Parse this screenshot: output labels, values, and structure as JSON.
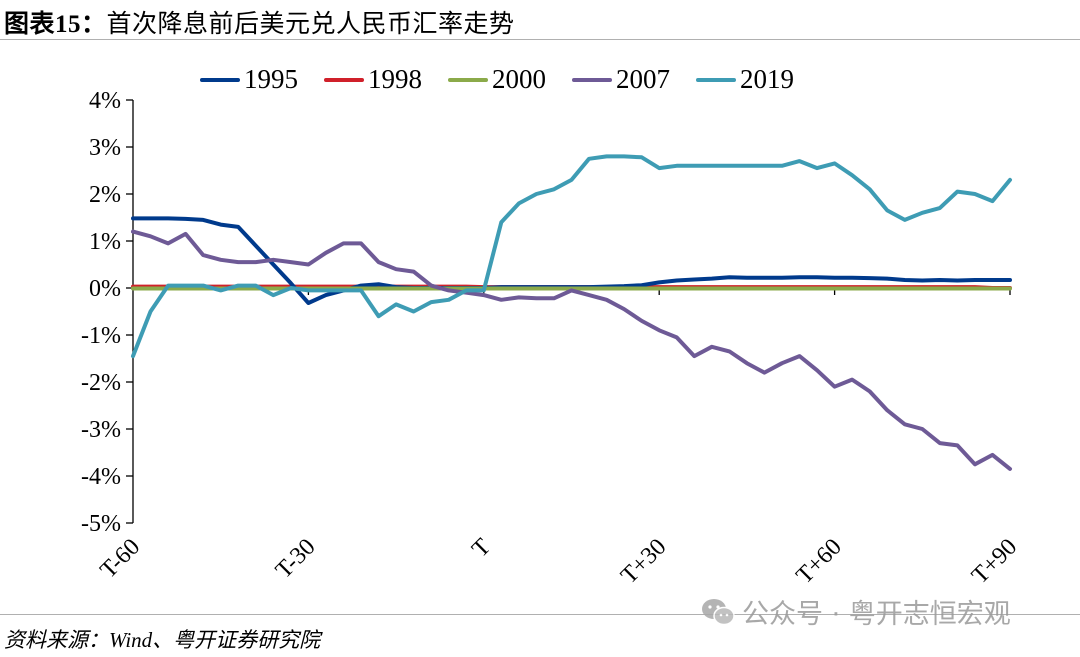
{
  "header": {
    "title_prefix": "图表15：",
    "title": "首次降息前后美元兑人民币汇率走势"
  },
  "footer": {
    "source": "资料来源：Wind、粤开证券研究院",
    "watermark": "公众号 · 粤开志恒宏观",
    "watermark_icon": "wechat-icon"
  },
  "colors": {
    "1995": "#003A8C",
    "1998": "#D0202A",
    "2000": "#8BAA4A",
    "2007": "#6E5A96",
    "2019": "#3E9CB4"
  },
  "chart_data": {
    "type": "line",
    "title": "首次降息前后美元兑人民币汇率走势",
    "xlabel": "",
    "ylabel": "",
    "x_ticks": [
      "T-60",
      "T-30",
      "T",
      "T+30",
      "T+60",
      "T+90"
    ],
    "y_ticks": [
      "4%",
      "3%",
      "2%",
      "1%",
      "0%",
      "-1%",
      "-2%",
      "-3%",
      "-4%",
      "-5%"
    ],
    "ylim": [
      -5,
      4
    ],
    "xlim": [
      -60,
      90
    ],
    "grid": false,
    "legend_position": "top",
    "x": [
      -60,
      -57,
      -54,
      -51,
      -48,
      -45,
      -42,
      -39,
      -36,
      -33,
      -30,
      -27,
      -24,
      -21,
      -18,
      -15,
      -12,
      -9,
      -6,
      -3,
      0,
      3,
      6,
      9,
      12,
      15,
      18,
      21,
      24,
      27,
      30,
      33,
      36,
      39,
      42,
      45,
      48,
      51,
      54,
      57,
      60,
      63,
      66,
      69,
      72,
      75,
      78,
      81,
      84,
      87,
      90
    ],
    "series": [
      {
        "name": "1995",
        "values": [
          1.48,
          1.48,
          1.48,
          1.47,
          1.45,
          1.35,
          1.3,
          0.9,
          0.5,
          0.1,
          -0.32,
          -0.15,
          -0.05,
          0.05,
          0.08,
          0.02,
          0.0,
          0.0,
          0.0,
          0.0,
          0.0,
          0.02,
          0.02,
          0.02,
          0.02,
          0.02,
          0.02,
          0.03,
          0.04,
          0.06,
          0.12,
          0.16,
          0.18,
          0.2,
          0.23,
          0.22,
          0.22,
          0.22,
          0.23,
          0.23,
          0.22,
          0.22,
          0.21,
          0.2,
          0.17,
          0.16,
          0.17,
          0.16,
          0.17,
          0.17,
          0.17
        ]
      },
      {
        "name": "1998",
        "values": [
          0.03,
          0.03,
          0.03,
          0.03,
          0.03,
          0.03,
          0.03,
          0.03,
          0.03,
          0.03,
          0.03,
          0.03,
          0.03,
          0.03,
          0.03,
          0.03,
          0.03,
          0.03,
          0.03,
          0.03,
          0.02,
          0.02,
          0.02,
          0.02,
          0.02,
          0.02,
          0.02,
          0.02,
          0.02,
          0.02,
          0.02,
          0.02,
          0.02,
          0.02,
          0.02,
          0.02,
          0.02,
          0.02,
          0.02,
          0.02,
          0.02,
          0.02,
          0.02,
          0.02,
          0.02,
          0.02,
          0.02,
          0.02,
          0.02,
          0.0,
          0.0
        ]
      },
      {
        "name": "2000",
        "values": [
          -0.01,
          -0.01,
          -0.01,
          -0.01,
          -0.01,
          -0.01,
          -0.01,
          -0.01,
          -0.01,
          -0.01,
          -0.01,
          -0.01,
          -0.01,
          -0.01,
          -0.01,
          -0.01,
          -0.01,
          -0.01,
          -0.01,
          -0.01,
          -0.01,
          -0.01,
          -0.01,
          -0.01,
          -0.01,
          -0.01,
          -0.01,
          -0.01,
          -0.01,
          -0.01,
          -0.01,
          -0.01,
          -0.01,
          -0.01,
          -0.01,
          -0.01,
          -0.01,
          -0.01,
          -0.01,
          -0.01,
          -0.01,
          -0.01,
          -0.01,
          -0.01,
          -0.01,
          -0.01,
          -0.01,
          -0.01,
          -0.01,
          -0.01,
          -0.01
        ]
      },
      {
        "name": "2007",
        "values": [
          1.2,
          1.1,
          0.95,
          1.15,
          0.7,
          0.6,
          0.55,
          0.55,
          0.6,
          0.55,
          0.5,
          0.75,
          0.95,
          0.95,
          0.55,
          0.4,
          0.35,
          0.05,
          -0.05,
          -0.1,
          -0.15,
          -0.25,
          -0.2,
          -0.22,
          -0.22,
          -0.05,
          -0.15,
          -0.25,
          -0.45,
          -0.7,
          -0.9,
          -1.05,
          -1.45,
          -1.25,
          -1.35,
          -1.6,
          -1.8,
          -1.6,
          -1.45,
          -1.75,
          -2.1,
          -1.95,
          -2.2,
          -2.6,
          -2.9,
          -3.0,
          -3.3,
          -3.35,
          -3.75,
          -3.55,
          -3.85
        ]
      },
      {
        "name": "2019",
        "values": [
          -1.45,
          -0.5,
          0.05,
          0.05,
          0.05,
          -0.05,
          0.05,
          0.05,
          -0.15,
          0.0,
          -0.05,
          -0.05,
          -0.05,
          -0.05,
          -0.6,
          -0.35,
          -0.5,
          -0.3,
          -0.25,
          -0.05,
          -0.05,
          1.4,
          1.8,
          2.0,
          2.1,
          2.3,
          2.75,
          2.8,
          2.8,
          2.78,
          2.55,
          2.6,
          2.6,
          2.6,
          2.6,
          2.6,
          2.6,
          2.6,
          2.7,
          2.55,
          2.65,
          2.4,
          2.1,
          1.65,
          1.45,
          1.6,
          1.7,
          2.05,
          2.0,
          1.85,
          2.3
        ]
      }
    ]
  }
}
